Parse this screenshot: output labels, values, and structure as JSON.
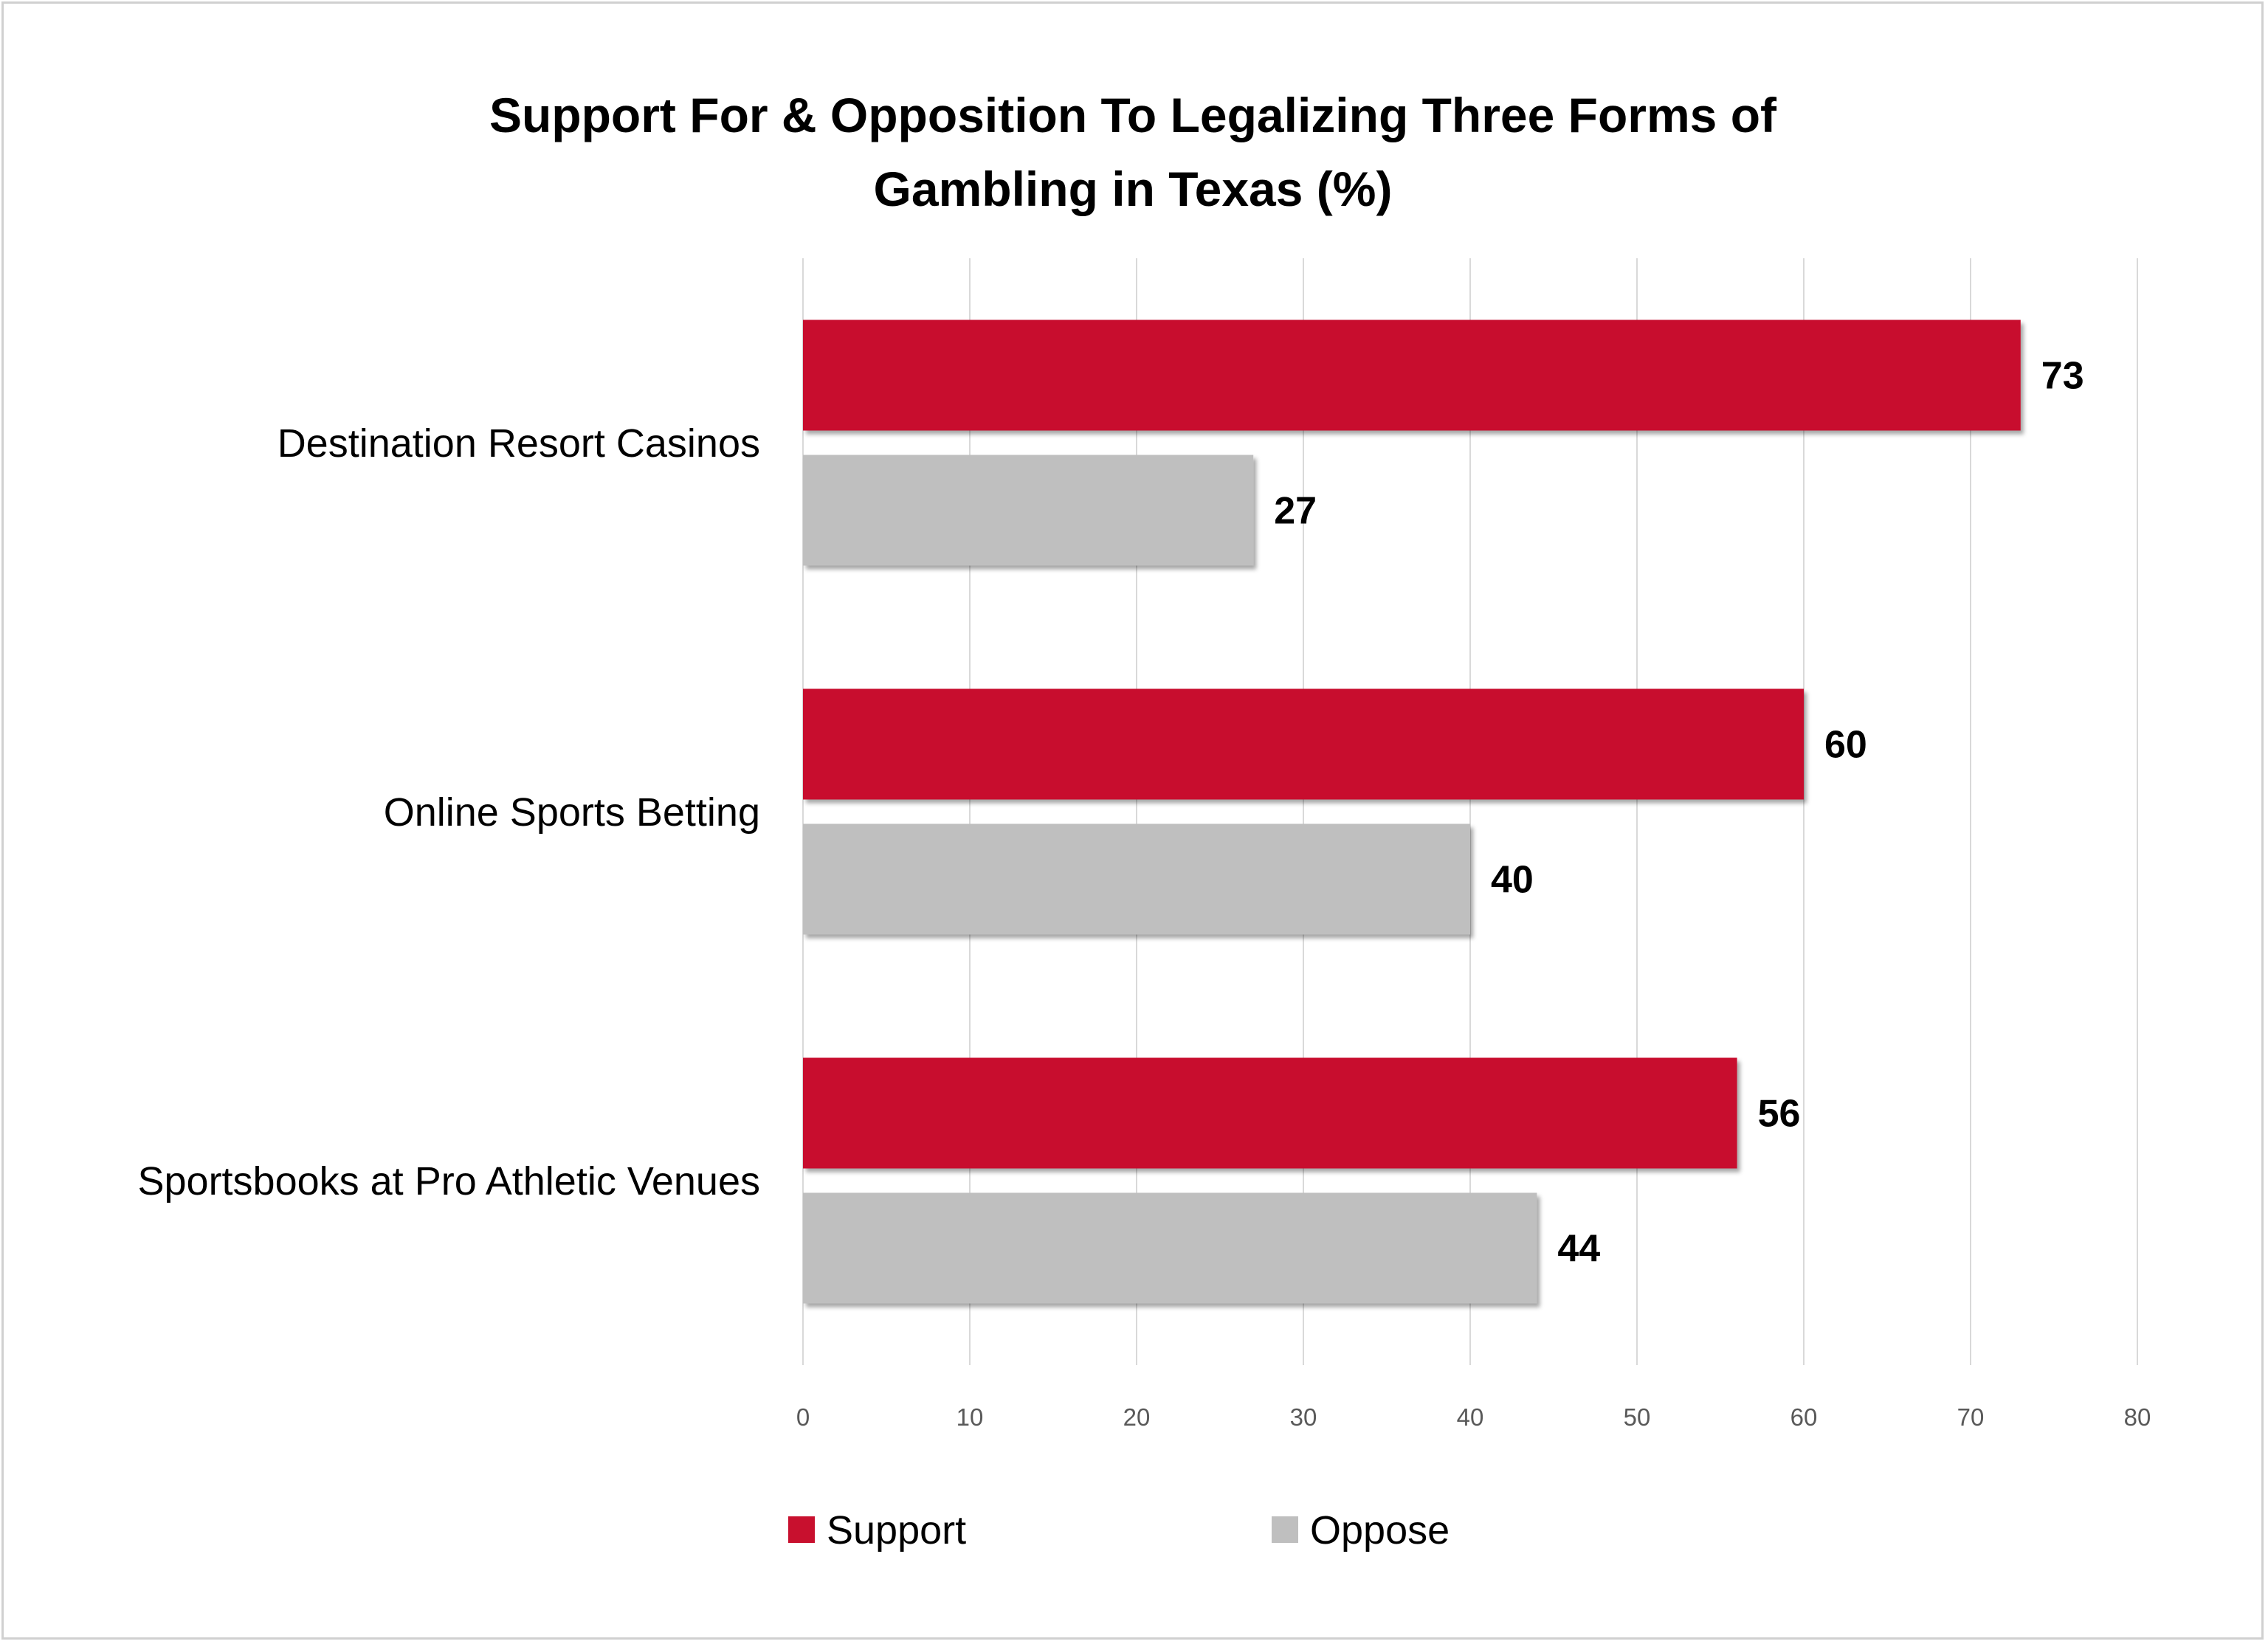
{
  "chart_data": {
    "type": "bar",
    "orientation": "horizontal",
    "title_lines": [
      "Support For & Opposition To Legalizing Three Forms of",
      "Gambling in Texas (%)"
    ],
    "categories": [
      "Destination Resort Casinos",
      "Online Sports Betting",
      "Sportsbooks at Pro Athletic Venues"
    ],
    "series": [
      {
        "name": "Support",
        "color": "#c8102e",
        "values": [
          73,
          60,
          56
        ]
      },
      {
        "name": "Oppose",
        "color": "#bfbfbf",
        "values": [
          27,
          40,
          44
        ]
      }
    ],
    "xlim": [
      0,
      80
    ],
    "x_ticks": [
      "0",
      "10",
      "20",
      "30",
      "40",
      "50",
      "60",
      "70",
      "80"
    ],
    "grid": true,
    "legend_position": "bottom",
    "data_labels": true
  }
}
